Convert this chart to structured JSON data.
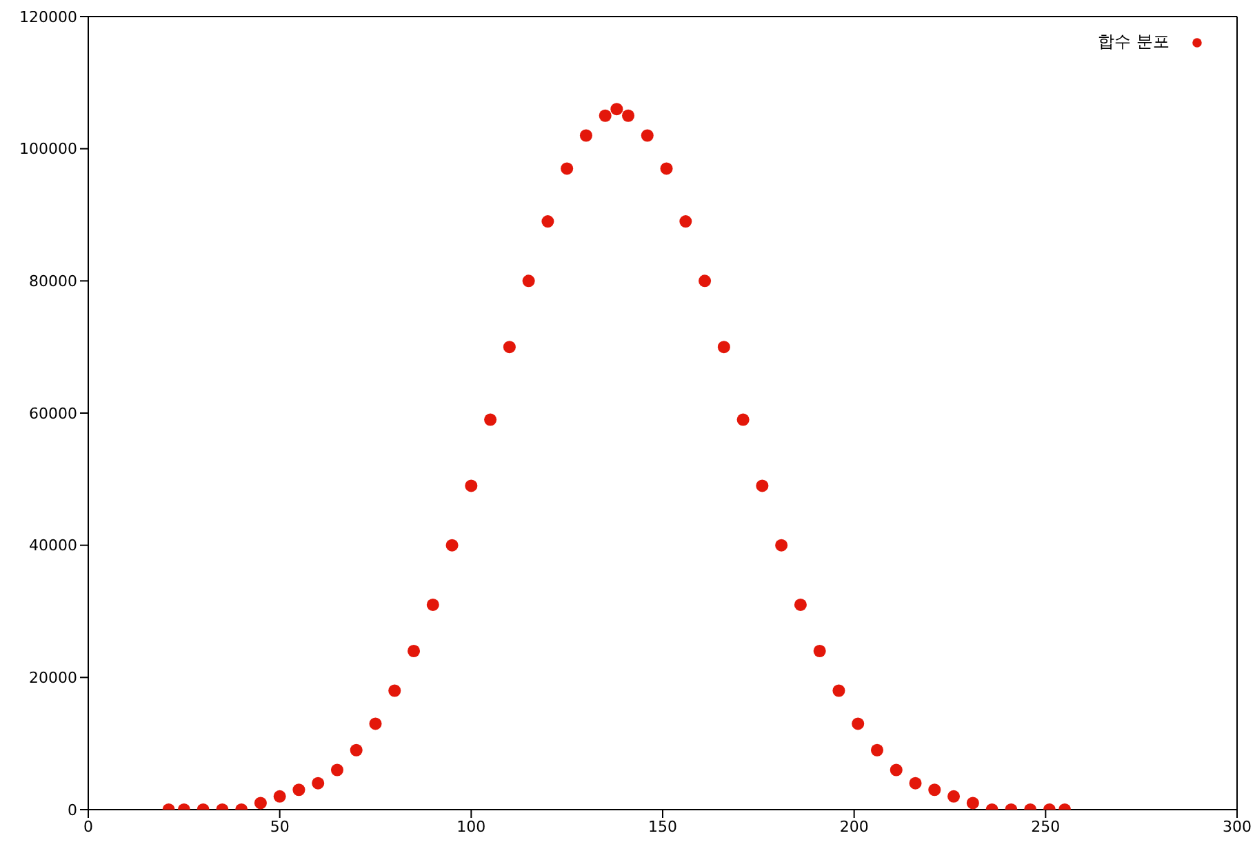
{
  "chart_data": {
    "type": "scatter",
    "x": [
      21,
      25,
      30,
      35,
      40,
      45,
      50,
      55,
      60,
      65,
      70,
      75,
      80,
      85,
      90,
      95,
      100,
      105,
      110,
      115,
      120,
      125,
      130,
      135,
      138,
      141,
      146,
      151,
      156,
      161,
      166,
      171,
      176,
      181,
      186,
      191,
      196,
      201,
      206,
      211,
      216,
      221,
      226,
      231,
      236,
      241,
      246,
      251,
      255
    ],
    "series": [
      {
        "name": "합수 분포",
        "color": "#e3170a",
        "values": [
          0,
          0,
          0,
          0,
          0,
          1000,
          2000,
          3000,
          4000,
          6000,
          9000,
          13000,
          18000,
          24000,
          31000,
          40000,
          49000,
          59000,
          70000,
          80000,
          89000,
          97000,
          102000,
          105000,
          106000,
          105000,
          102000,
          97000,
          89000,
          80000,
          70000,
          59000,
          49000,
          40000,
          31000,
          24000,
          18000,
          13000,
          9000,
          6000,
          4000,
          3000,
          2000,
          1000,
          0,
          0,
          0,
          0,
          0
        ]
      }
    ],
    "xlim": [
      0,
      300
    ],
    "xticks": [
      0,
      50,
      100,
      150,
      200,
      250,
      300
    ],
    "ylim": [
      0,
      120000
    ],
    "yticks": [
      0,
      20000,
      40000,
      60000,
      80000,
      100000,
      120000
    ],
    "grid": false,
    "legend": "top right",
    "marker": "circle"
  }
}
